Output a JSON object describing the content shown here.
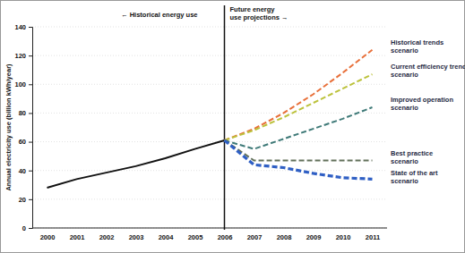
{
  "chart_data": {
    "type": "line",
    "y_label": "Annual electricity use (billion kWh/year)",
    "categories": [
      "2000",
      "2001",
      "2002",
      "2003",
      "2004",
      "2005",
      "2006",
      "2007",
      "2008",
      "2009",
      "2010",
      "2011"
    ],
    "annotations": [
      "← Historical energy use",
      "Future energy\nuse projections →"
    ],
    "divider": "2006",
    "ylim": [
      0,
      140
    ],
    "yticks": [
      0,
      20,
      40,
      60,
      80,
      100,
      120,
      140
    ],
    "grid": true,
    "series": [
      {
        "color": "#111111",
        "line_style": "solid",
        "values": [
          28,
          34,
          38.5,
          43,
          48.5,
          55,
          61,
          null,
          null,
          null,
          null,
          null
        ]
      },
      {
        "name": "Historical trends scenario",
        "color": "#e8703a",
        "line_style": "dashed",
        "values": [
          null,
          null,
          null,
          null,
          null,
          null,
          61,
          69,
          80,
          93,
          108,
          124
        ]
      },
      {
        "name": "Current efficiency trends scenario",
        "color": "#bcc23c",
        "line_style": "dashed",
        "values": [
          null,
          null,
          null,
          null,
          null,
          null,
          61,
          68,
          77,
          87,
          97,
          107
        ]
      },
      {
        "name": "Improved operation scenario",
        "color": "#3f7a78",
        "line_style": "dashed",
        "values": [
          null,
          null,
          null,
          null,
          null,
          null,
          61,
          55,
          62,
          69,
          76,
          84
        ]
      },
      {
        "name": "Best practice scenario",
        "color": "#62705a",
        "line_style": "dashed",
        "values": [
          null,
          null,
          null,
          null,
          null,
          null,
          61,
          47,
          47,
          47,
          47,
          47
        ]
      },
      {
        "name": "State of the art scenario",
        "color": "#2f5fc4",
        "line_style": "dashed",
        "values": [
          null,
          null,
          null,
          null,
          null,
          null,
          61,
          44,
          42,
          38,
          35,
          34
        ]
      }
    ]
  }
}
